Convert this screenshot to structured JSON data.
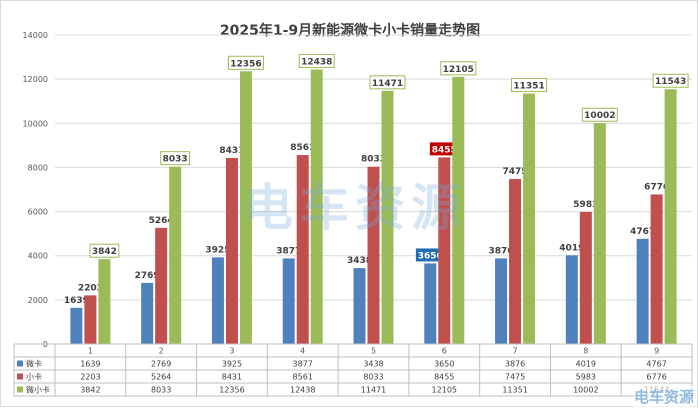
{
  "chart_data": {
    "type": "bar",
    "title": "2025年1-9月新能源微卡小卡销量走势图",
    "categories": [
      "1",
      "2",
      "3",
      "4",
      "5",
      "6",
      "7",
      "8",
      "9"
    ],
    "series": [
      {
        "name": "微卡",
        "color": "#4f81bd",
        "values": [
          1639,
          2769,
          3925,
          3877,
          3438,
          3650,
          3876,
          4019,
          4767
        ]
      },
      {
        "name": "小卡",
        "color": "#c0504d",
        "values": [
          2203,
          5264,
          8431,
          8561,
          8033,
          8455,
          7475,
          5983,
          6776
        ]
      },
      {
        "name": "微小卡",
        "color": "#9bbb59",
        "values": [
          3842,
          8033,
          12356,
          12438,
          11471,
          12105,
          11351,
          10002,
          11543
        ]
      }
    ],
    "ylim": [
      0,
      14000
    ],
    "yticks": [
      0,
      2000,
      4000,
      6000,
      8000,
      10000,
      12000,
      14000
    ],
    "grid": true,
    "legend": "data-table",
    "highlight": [
      {
        "series": 0,
        "category": 5,
        "bg": "#1f6fb5"
      },
      {
        "series": 1,
        "category": 5,
        "bg": "#c00000"
      }
    ]
  },
  "watermark": "电车资源",
  "corner_logo": "电车资源"
}
